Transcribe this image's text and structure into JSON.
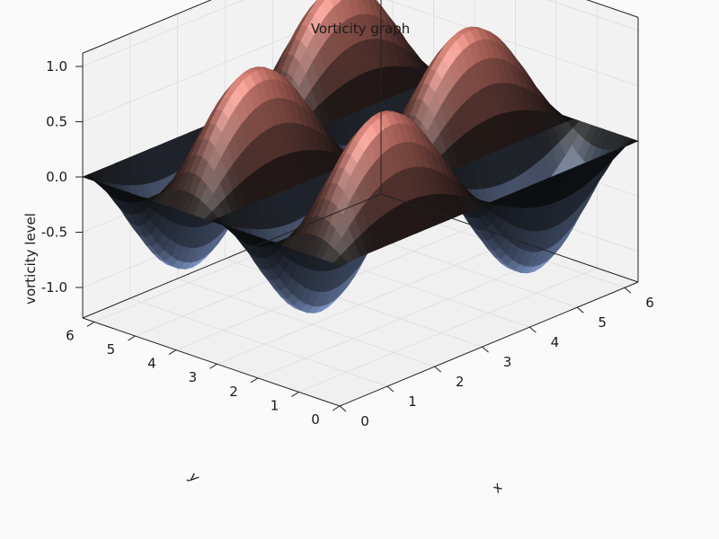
{
  "chart_data": {
    "type": "surface",
    "title": "Vorticity graph",
    "xlabel": "x",
    "ylabel": "y",
    "zlabel": "vorticity level",
    "function": "z = sin(x)·sin(2y)",
    "x_range": [
      0,
      6.283
    ],
    "y_range": [
      0,
      6.283
    ],
    "zlim": [
      -1.0,
      1.0
    ],
    "x_ticks": [
      "0",
      "1",
      "2",
      "3",
      "4",
      "5",
      "6"
    ],
    "y_ticks": [
      "0",
      "1",
      "2",
      "3",
      "4",
      "5",
      "6"
    ],
    "z_ticks": [
      "-1.0",
      "-0.5",
      "0.0",
      "0.5",
      "1.0"
    ],
    "colormap": "berlin",
    "colors": {
      "low": "#9ab8f5",
      "mid": "#0b0b0b",
      "high": "#e99a9a"
    },
    "grid": true
  }
}
